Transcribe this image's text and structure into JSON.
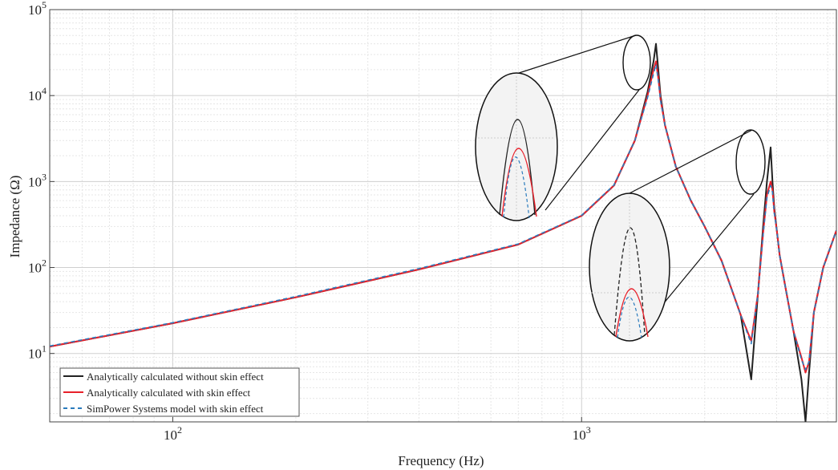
{
  "chart_data": {
    "type": "line",
    "title": "",
    "xlabel": "Frequency (Hz)",
    "ylabel": "Impedance (Ω)",
    "xscale": "log",
    "yscale": "log",
    "xlim": [
      50,
      4200
    ],
    "ylim": [
      1.6,
      100000
    ],
    "grid": true,
    "x_ticks": [
      {
        "base": "10",
        "exp": "2",
        "value": 100
      },
      {
        "base": "10",
        "exp": "3",
        "value": 1000
      }
    ],
    "y_ticks": [
      {
        "base": "10",
        "exp": "1",
        "value": 10
      },
      {
        "base": "10",
        "exp": "2",
        "value": 100
      },
      {
        "base": "10",
        "exp": "3",
        "value": 1000
      },
      {
        "base": "10",
        "exp": "4",
        "value": 10000
      },
      {
        "base": "10",
        "exp": "5",
        "value": 100000
      }
    ],
    "legend_position": "bottom-left",
    "series": [
      {
        "name": "Analytically calculated without skin effect",
        "color": "#222222",
        "dash": "solid",
        "x": [
          50,
          100,
          200,
          400,
          700,
          1000,
          1200,
          1350,
          1450,
          1500,
          1520,
          1540,
          1560,
          1600,
          1700,
          1850,
          2000,
          2200,
          2450,
          2600,
          2700,
          2780,
          2840,
          2900,
          2930,
          2960,
          3000,
          3050,
          3150,
          3300,
          3450,
          3530,
          3600,
          3700,
          3900,
          4200
        ],
        "y": [
          12,
          22.5,
          45,
          95,
          185,
          400,
          900,
          3000,
          11000,
          25000,
          40000,
          20000,
          10000,
          4500,
          1500,
          600,
          300,
          120,
          28,
          5,
          50,
          300,
          1000,
          2500,
          1000,
          500,
          280,
          140,
          60,
          18,
          5,
          1.6,
          6,
          30,
          100,
          270
        ]
      },
      {
        "name": "Analytically calculated with skin effect",
        "color": "#e8202a",
        "dash": "solid",
        "x": [
          50,
          100,
          200,
          400,
          700,
          1000,
          1200,
          1350,
          1450,
          1500,
          1520,
          1540,
          1560,
          1600,
          1700,
          1850,
          2000,
          2200,
          2450,
          2600,
          2700,
          2780,
          2840,
          2900,
          2930,
          2960,
          3000,
          3050,
          3150,
          3300,
          3450,
          3530,
          3600,
          3700,
          3900,
          4200
        ],
        "y": [
          12,
          22.5,
          45,
          95,
          185,
          400,
          900,
          3000,
          10000,
          20000,
          25000,
          16000,
          9000,
          4500,
          1500,
          600,
          300,
          120,
          28,
          14,
          50,
          250,
          700,
          1000,
          800,
          450,
          280,
          140,
          60,
          18,
          9,
          6,
          8,
          30,
          100,
          270
        ]
      },
      {
        "name": "SimPower Systems model with skin effect",
        "color": "#2b7bbd",
        "dash": "dashed",
        "x": [
          50,
          100,
          200,
          400,
          700,
          1000,
          1200,
          1350,
          1450,
          1500,
          1520,
          1540,
          1560,
          1600,
          1700,
          1850,
          2000,
          2200,
          2450,
          2600,
          2700,
          2780,
          2840,
          2900,
          2930,
          2960,
          3000,
          3050,
          3150,
          3300,
          3450,
          3530,
          3600,
          3700,
          3900,
          4200
        ],
        "y": [
          12.2,
          22.8,
          46,
          97,
          188,
          405,
          910,
          3000,
          9500,
          18000,
          23000,
          15000,
          8800,
          4500,
          1500,
          600,
          300,
          120,
          28,
          13,
          50,
          240,
          650,
          900,
          750,
          430,
          280,
          140,
          60,
          18,
          8.5,
          6.5,
          8,
          30,
          100,
          270
        ]
      }
    ]
  }
}
